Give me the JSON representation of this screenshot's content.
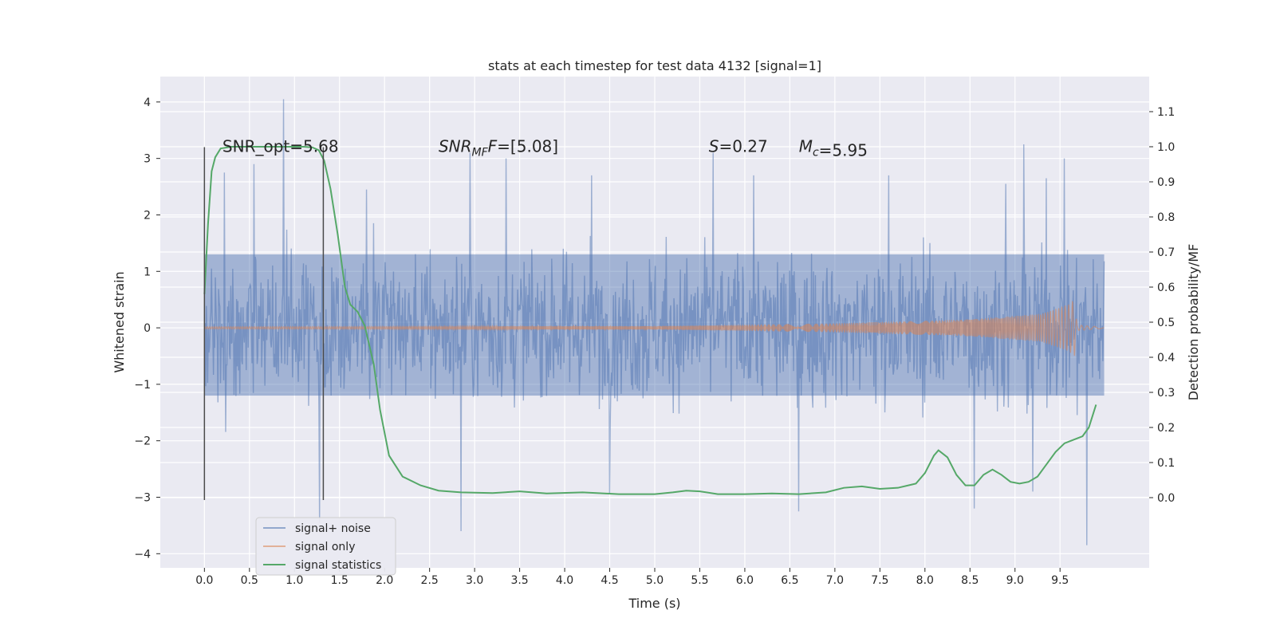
{
  "chart_data": {
    "type": "line",
    "title": "stats at each timestep for test data 4132 [signal=1]",
    "xlabel": "Time (s)",
    "ylabel": "Whitened strain",
    "ylabel_right": "Detection probability/MF",
    "xlim": [
      -0.49,
      10.49
    ],
    "ylim": [
      -4.25,
      4.45
    ],
    "ylim_right": [
      -0.2,
      1.2
    ],
    "x_ticks": [
      "0.0",
      "0.5",
      "1.0",
      "1.5",
      "2.0",
      "2.5",
      "3.0",
      "3.5",
      "4.0",
      "4.5",
      "5.0",
      "5.5",
      "6.0",
      "6.5",
      "7.0",
      "7.5",
      "8.0",
      "8.5",
      "9.0",
      "9.5"
    ],
    "y_ticks": [
      "−4",
      "−3",
      "−2",
      "−1",
      "0",
      "1",
      "2",
      "3",
      "4"
    ],
    "y_right_ticks": [
      "0.0",
      "0.1",
      "0.2",
      "0.3",
      "0.4",
      "0.5",
      "0.6",
      "0.7",
      "0.8",
      "0.9",
      "1.0",
      "1.1"
    ],
    "grid": true,
    "legend_position": "lower-left",
    "annotations": [
      {
        "text": "SNR_opt=5.68",
        "x": 0.2,
        "y": 3.2
      },
      {
        "text": "=[5.08]",
        "prefix_italic": "SNR",
        "sub": "MF",
        "suffix_italic": "F",
        "x": 2.6,
        "y": 3.2
      },
      {
        "text": "=0.27",
        "prefix_italic": "S",
        "x": 5.6,
        "y": 3.2
      },
      {
        "text": "=5.95",
        "prefix_italic": "M",
        "sub": "c",
        "x": 6.6,
        "y": 3.2
      }
    ],
    "vlines": [
      {
        "x": 0.0,
        "y_from": -3.05,
        "y_to": 3.2
      },
      {
        "x": 1.32,
        "y_from": -3.05,
        "y_to": 3.2
      }
    ],
    "series": [
      {
        "name": "signal+ noise",
        "color": "#4c72b0",
        "x_range": [
          0.0,
          9.99
        ],
        "band": [
          -1.2,
          1.3
        ],
        "extremes": [
          [
            0.88,
            4.05
          ],
          [
            1.28,
            -3.45
          ],
          [
            2.85,
            -3.6
          ],
          [
            0.22,
            2.75
          ],
          [
            0.55,
            2.9
          ],
          [
            2.95,
            3.1
          ],
          [
            3.35,
            3.0
          ],
          [
            5.65,
            3.1
          ],
          [
            9.1,
            3.25
          ],
          [
            9.55,
            3.0
          ],
          [
            9.8,
            2.8
          ],
          [
            8.55,
            -3.2
          ],
          [
            9.8,
            -3.85
          ],
          [
            6.6,
            -3.25
          ],
          [
            9.2,
            -2.9
          ],
          [
            4.5,
            -2.95
          ],
          [
            1.8,
            2.45
          ],
          [
            4.3,
            2.7
          ],
          [
            6.1,
            2.7
          ],
          [
            7.6,
            2.7
          ],
          [
            8.9,
            2.55
          ],
          [
            9.35,
            2.65
          ]
        ]
      },
      {
        "name": "signal only",
        "color": "#dd8452",
        "chirp_amplitude": [
          [
            0.0,
            0.02
          ],
          [
            5.0,
            0.03
          ],
          [
            7.0,
            0.08
          ],
          [
            8.5,
            0.15
          ],
          [
            9.3,
            0.25
          ],
          [
            9.6,
            0.42
          ],
          [
            9.66,
            0.5
          ],
          [
            9.69,
            0.05
          ],
          [
            9.99,
            0.01
          ]
        ]
      },
      {
        "name": "signal statistics",
        "color": "#55a868",
        "x": [
          0.0,
          0.04,
          0.08,
          0.12,
          0.18,
          0.3,
          0.5,
          0.8,
          1.1,
          1.2,
          1.27,
          1.33,
          1.4,
          1.48,
          1.56,
          1.62,
          1.7,
          1.78,
          1.88,
          1.95,
          2.05,
          2.2,
          2.4,
          2.6,
          2.85,
          3.2,
          3.5,
          3.8,
          4.2,
          4.6,
          5.0,
          5.2,
          5.35,
          5.5,
          5.7,
          6.0,
          6.3,
          6.6,
          6.9,
          7.1,
          7.3,
          7.5,
          7.7,
          7.9,
          8.0,
          8.1,
          8.15,
          8.25,
          8.35,
          8.45,
          8.55,
          8.65,
          8.75,
          8.85,
          8.95,
          9.05,
          9.15,
          9.25,
          9.35,
          9.45,
          9.55,
          9.65,
          9.75,
          9.82,
          9.9
        ],
        "y": [
          0.58,
          0.78,
          0.93,
          0.97,
          0.995,
          1.0,
          1.0,
          1.0,
          1.0,
          0.998,
          0.99,
          0.96,
          0.88,
          0.75,
          0.6,
          0.55,
          0.53,
          0.49,
          0.38,
          0.25,
          0.12,
          0.06,
          0.035,
          0.02,
          0.015,
          0.013,
          0.018,
          0.012,
          0.015,
          0.01,
          0.01,
          0.015,
          0.02,
          0.018,
          0.01,
          0.01,
          0.012,
          0.01,
          0.015,
          0.028,
          0.032,
          0.025,
          0.028,
          0.04,
          0.07,
          0.12,
          0.135,
          0.115,
          0.065,
          0.035,
          0.035,
          0.065,
          0.08,
          0.065,
          0.045,
          0.04,
          0.045,
          0.06,
          0.095,
          0.13,
          0.155,
          0.165,
          0.175,
          0.2,
          0.265
        ]
      }
    ]
  }
}
